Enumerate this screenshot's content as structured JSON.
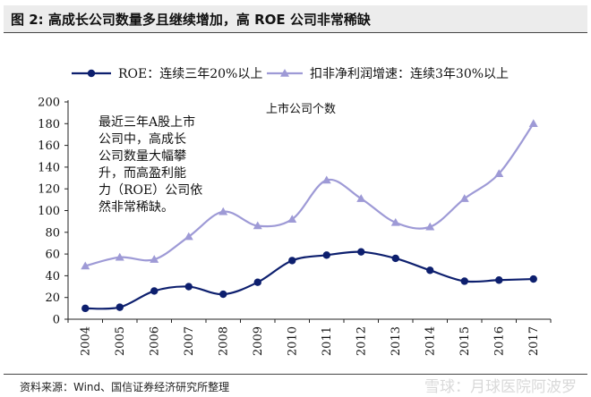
{
  "figure_title": "图 2: 高成长公司数量多且继续增加，高 ROE 公司非常稀缺",
  "source_note": "资料来源：Wind、国信证券经济研究所整理",
  "watermark": "雪球：月球医院阿波罗",
  "annotation_lines": [
    "最近三年A股上市",
    "公司中，高成长",
    "公司数量大幅攀",
    "升，而高盈利能",
    "力（ROE）公司依",
    "然非常稀缺。"
  ],
  "chart_data": {
    "type": "line",
    "title": "上市公司个数",
    "xlabel": "",
    "ylabel": "",
    "categories": [
      "2004",
      "2005",
      "2006",
      "2007",
      "2008",
      "2009",
      "2010",
      "2011",
      "2012",
      "2013",
      "2014",
      "2015",
      "2016",
      "2017"
    ],
    "ylim": [
      0,
      200
    ],
    "yticks": [
      0,
      20,
      40,
      60,
      80,
      100,
      120,
      140,
      160,
      180,
      200
    ],
    "grid": false,
    "legend_position": "top",
    "series": [
      {
        "name": "ROE：连续三年20%以上",
        "color": "#0d1f6e",
        "marker": "circle",
        "values": [
          10,
          11,
          26,
          30,
          23,
          34,
          54,
          59,
          62,
          56,
          45,
          35,
          36,
          37
        ]
      },
      {
        "name": "扣非净利润增速：连续3年30%以上",
        "color": "#9e9ad6",
        "marker": "triangle",
        "values": [
          49,
          57,
          55,
          76,
          99,
          86,
          92,
          128,
          111,
          89,
          85,
          111,
          134,
          180
        ]
      }
    ]
  }
}
